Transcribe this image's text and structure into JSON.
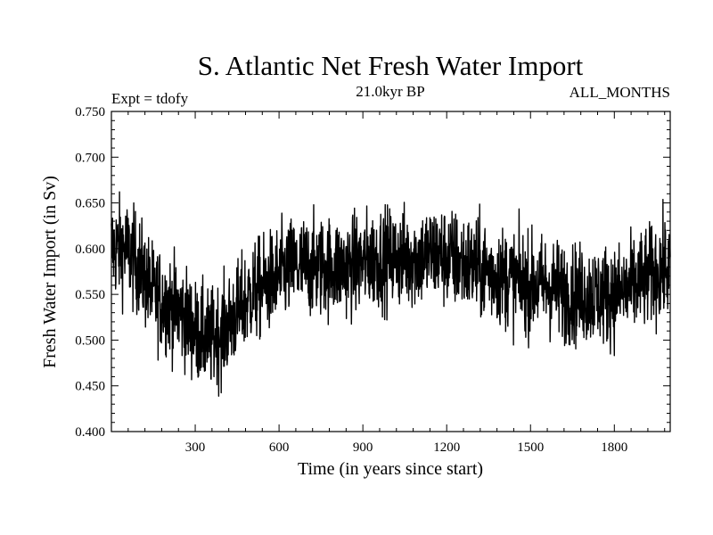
{
  "chart_data": {
    "type": "line",
    "title": "S. Atlantic Net Fresh Water Import",
    "subtitle_left": "Expt = tdofy",
    "subtitle_center": "21.0kyr BP",
    "subtitle_right": "ALL_MONTHS",
    "xlabel": "Time (in years since start)",
    "ylabel": "Fresh Water Import (in Sv)",
    "xlim": [
      0,
      2000
    ],
    "ylim": [
      0.4,
      0.75
    ],
    "xticks": [
      300,
      600,
      900,
      1200,
      1500,
      1800
    ],
    "xtick_labels": [
      "300",
      "600",
      "900",
      "1200",
      "1500",
      "1800"
    ],
    "yticks": [
      0.4,
      0.45,
      0.5,
      0.55,
      0.6,
      0.65,
      0.7,
      0.75
    ],
    "ytick_labels": [
      "0.400",
      "0.450",
      "0.500",
      "0.550",
      "0.600",
      "0.650",
      "0.700",
      "0.750"
    ],
    "grid": false,
    "line_color": "#000000",
    "series": [
      {
        "x": [
          0,
          50,
          100,
          150,
          200,
          250,
          300,
          350,
          400,
          450,
          500,
          550,
          600,
          650,
          700,
          750,
          800,
          850,
          900,
          950,
          1000,
          1050,
          1100,
          1150,
          1200,
          1250,
          1300,
          1350,
          1400,
          1450,
          1500,
          1550,
          1600,
          1650,
          1700,
          1750,
          1800,
          1850,
          1900,
          1950,
          2000
        ],
        "values": [
          0.6,
          0.6,
          0.58,
          0.55,
          0.54,
          0.53,
          0.51,
          0.5,
          0.51,
          0.53,
          0.55,
          0.56,
          0.57,
          0.58,
          0.58,
          0.58,
          0.58,
          0.58,
          0.585,
          0.59,
          0.59,
          0.59,
          0.59,
          0.595,
          0.59,
          0.585,
          0.58,
          0.575,
          0.57,
          0.565,
          0.56,
          0.56,
          0.555,
          0.55,
          0.55,
          0.55,
          0.55,
          0.555,
          0.565,
          0.575,
          0.58
        ],
        "noise_amplitude": 0.03
      }
    ]
  }
}
